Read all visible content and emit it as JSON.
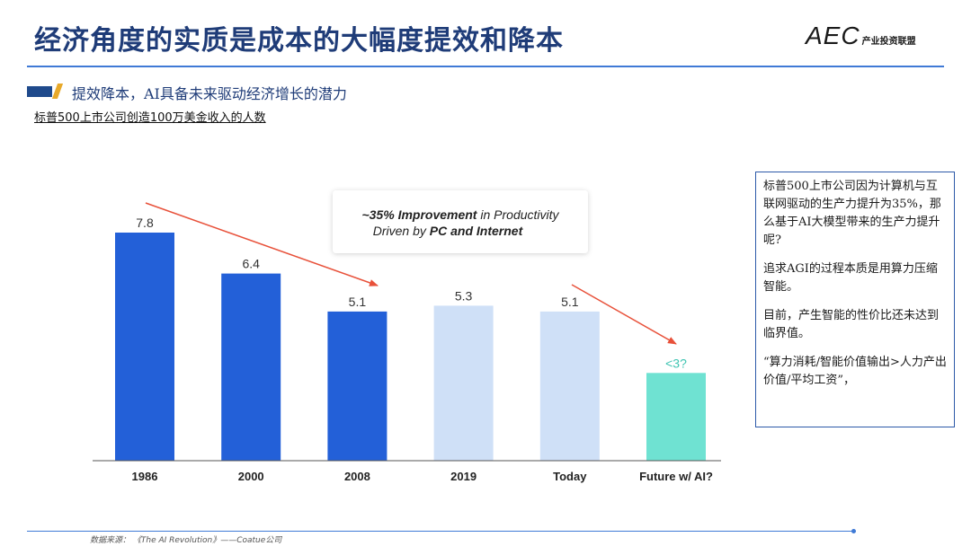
{
  "header": {
    "title": "经济角度的实质是成本的大幅度提效和降本",
    "logo_mark": "AEC",
    "logo_text": "产业投资联盟"
  },
  "subtitle": "提效降本，AI具备未来驱动经济增长的潜力",
  "caption": "标普500上市公司创造100万美金收入的人数",
  "chart_data": {
    "type": "bar",
    "categories": [
      "1986",
      "2000",
      "2008",
      "2019",
      "Today",
      "Future w/ AI?"
    ],
    "values": [
      7.8,
      6.4,
      5.1,
      5.3,
      5.1,
      3
    ],
    "value_labels": [
      "7.8",
      "6.4",
      "5.1",
      "5.3",
      "5.1",
      "<3?"
    ],
    "bar_colors": [
      "#2360d8",
      "#2360d8",
      "#2360d8",
      "#cfe0f7",
      "#cfe0f7",
      "#6fe2d2"
    ],
    "label_colors": [
      "#333333",
      "#333333",
      "#333333",
      "#333333",
      "#333333",
      "#3fc4b2"
    ],
    "ylim": [
      0,
      9
    ],
    "title": "",
    "xlabel": "",
    "ylabel": "",
    "annotation": {
      "part1": "~35% ",
      "part2": "Improvement",
      "part3": " in Productivity",
      "part4": "Driven by ",
      "part5": "PC and Internet"
    },
    "arrow_color": "#e8513a"
  },
  "infobox": {
    "p1": "标普500上市公司因为计算机与互联网驱动的生产力提升为35%，那么基于AI大模型带来的生产力提升呢?",
    "p2": "追求AGI的过程本质是用算力压缩智能。",
    "p3": "目前，产生智能的性价比还未达到临界值。",
    "p4": "“算力消耗/智能价值输出>人力产出价值/平均工资”，"
  },
  "footer": {
    "source": "数据来源：  《The AI Revolution》——Coatue公司"
  }
}
